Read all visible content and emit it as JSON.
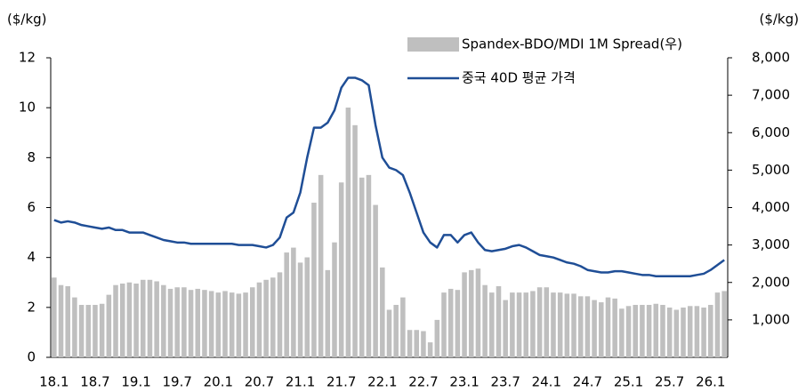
{
  "chart_data": {
    "type": "bar-line",
    "ylabel": "($/kg)",
    "y2label": "($/kg)",
    "categories": [
      "18.1",
      null,
      null,
      null,
      null,
      null,
      "18.7",
      null,
      null,
      null,
      null,
      null,
      "19.1",
      null,
      null,
      null,
      null,
      null,
      "19.7",
      null,
      null,
      null,
      null,
      null,
      "20.1",
      null,
      null,
      null,
      null,
      null,
      "20.7",
      null,
      null,
      null,
      null,
      null,
      "21.1",
      null,
      null,
      null,
      null,
      null,
      "21.7",
      null,
      null,
      null,
      null,
      null,
      "22.1",
      null,
      null,
      null,
      null,
      null,
      "22.7",
      null,
      null,
      null,
      null,
      null,
      "23.1",
      null,
      null,
      null,
      null,
      null,
      "23.7",
      null,
      null,
      null,
      null,
      null,
      "24.1",
      null,
      null,
      null,
      null,
      null,
      "24.7",
      null,
      null,
      null,
      null,
      null,
      "25.1",
      null,
      null,
      null,
      null,
      null,
      "25.7",
      null,
      null,
      null,
      null,
      null,
      "26.1",
      null,
      null
    ],
    "series": [
      {
        "name": "Spandex-BDO/MDI 1M Spread(우)",
        "type": "bar",
        "axis": "y2",
        "color": "#bfbfbf",
        "values": [
          2130,
          1930,
          1900,
          1600,
          1400,
          1400,
          1400,
          1430,
          1670,
          1930,
          1970,
          2000,
          1970,
          2070,
          2070,
          2030,
          1930,
          1830,
          1870,
          1870,
          1800,
          1830,
          1800,
          1770,
          1730,
          1770,
          1730,
          1700,
          1730,
          1870,
          2000,
          2070,
          2130,
          2270,
          2800,
          2930,
          2530,
          2670,
          4130,
          4870,
          2330,
          3070,
          4670,
          6670,
          6200,
          4800,
          4870,
          4070,
          2400,
          1270,
          1400,
          1600,
          730,
          730,
          700,
          400,
          1000,
          1730,
          1830,
          1800,
          2270,
          2330,
          2370,
          1930,
          1730,
          1900,
          1530,
          1730,
          1730,
          1730,
          1770,
          1870,
          1870,
          1730,
          1730,
          1700,
          1700,
          1630,
          1630,
          1530,
          1470,
          1600,
          1570,
          1300,
          1370,
          1400,
          1400,
          1400,
          1430,
          1400,
          1330,
          1270,
          1330,
          1370,
          1370,
          1330,
          1400,
          1730,
          1770
        ]
      },
      {
        "name": "중국 40D 평균 가격",
        "type": "line",
        "color": "#1f4e96",
        "values": [
          5.5,
          5.4,
          5.45,
          5.4,
          5.3,
          5.25,
          5.2,
          5.15,
          5.2,
          5.1,
          5.1,
          5.0,
          5.0,
          5.0,
          4.9,
          4.8,
          4.7,
          4.65,
          4.6,
          4.6,
          4.55,
          4.55,
          4.55,
          4.55,
          4.55,
          4.55,
          4.55,
          4.5,
          4.5,
          4.5,
          4.45,
          4.4,
          4.5,
          4.8,
          5.6,
          5.8,
          6.6,
          8.0,
          9.2,
          9.2,
          9.4,
          9.9,
          10.8,
          11.2,
          11.2,
          11.1,
          10.9,
          9.3,
          8.0,
          7.6,
          7.5,
          7.3,
          6.6,
          5.8,
          5.0,
          4.6,
          4.4,
          4.9,
          4.9,
          4.6,
          4.9,
          5.0,
          4.6,
          4.3,
          4.25,
          4.3,
          4.35,
          4.45,
          4.5,
          4.4,
          4.25,
          4.1,
          4.05,
          4.0,
          3.9,
          3.8,
          3.75,
          3.65,
          3.5,
          3.45,
          3.4,
          3.4,
          3.45,
          3.45,
          3.4,
          3.35,
          3.3,
          3.3,
          3.25,
          3.25,
          3.25,
          3.25,
          3.25,
          3.25,
          3.3,
          3.35,
          3.5,
          3.7,
          3.9
        ]
      }
    ],
    "ylim": [
      0,
      12
    ],
    "yticks": [
      0,
      2,
      4,
      6,
      8,
      10,
      12
    ],
    "y2lim": [
      0,
      8000
    ],
    "y2ticks": [
      {
        "value": 1000,
        "label": "1,000"
      },
      {
        "value": 2000,
        "label": "2,000"
      },
      {
        "value": 3000,
        "label": "3,000"
      },
      {
        "value": 4000,
        "label": "4,000"
      },
      {
        "value": 5000,
        "label": "5,000"
      },
      {
        "value": 6000,
        "label": "6,000"
      },
      {
        "value": 7000,
        "label": "7,000"
      },
      {
        "value": 8000,
        "label": "8,000"
      }
    ],
    "grid": false,
    "legend": "upper right"
  }
}
